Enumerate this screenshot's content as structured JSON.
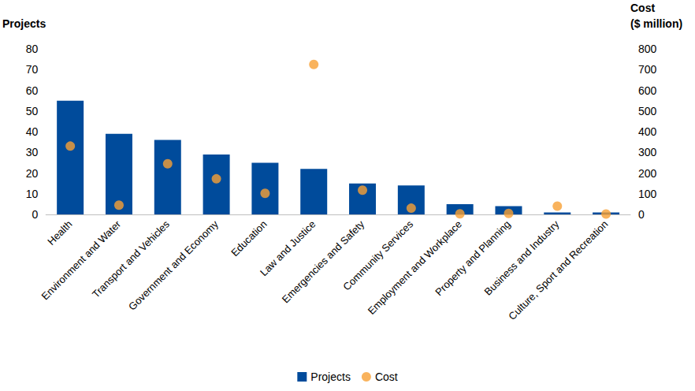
{
  "chart_data": {
    "type": "bar",
    "y_label": "Projects",
    "y2_label": "Cost\n($ million)",
    "categories": [
      "Health",
      "Environment and Water",
      "Transport and Vehicles",
      "Government and Economy",
      "Education",
      "Law and Justice",
      "Emergencies and Safety",
      "Community Services",
      "Employment and Workplace",
      "Property and Planning",
      "Business and Industry",
      "Culture, Sport and Recreation"
    ],
    "series": [
      {
        "name": "Projects",
        "type": "bar",
        "color": "#004b9b",
        "values": [
          55,
          39,
          36,
          29,
          25,
          22,
          15,
          14,
          5,
          4,
          1,
          1
        ]
      },
      {
        "name": "Cost",
        "type": "scatter",
        "marker": "circle",
        "color": "#f7a035",
        "axis": "y2",
        "values": [
          330,
          45,
          245,
          172,
          102,
          725,
          117,
          30,
          3,
          5,
          40,
          2
        ]
      }
    ],
    "ylim": [
      0,
      80
    ],
    "yticks": [
      0,
      10,
      20,
      30,
      40,
      50,
      60,
      70,
      80
    ],
    "y2lim": [
      0,
      800
    ],
    "y2ticks": [
      0,
      100,
      200,
      300,
      400,
      500,
      600,
      700,
      800
    ],
    "grid": false,
    "legend": "bottom"
  }
}
